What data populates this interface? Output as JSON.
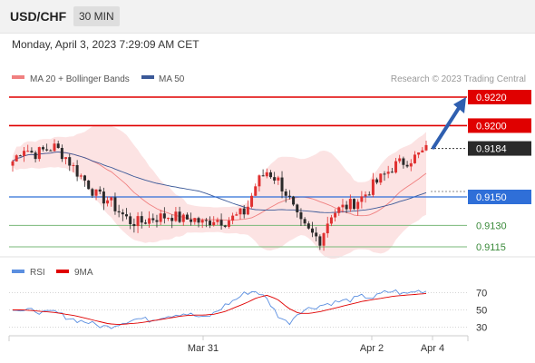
{
  "header": {
    "symbol": "USD/CHF",
    "timeframe": "30 MIN"
  },
  "datetime": "Monday, April 3, 2023 7:29:09 AM CET",
  "legend": {
    "ma20": "MA 20 + Bollinger Bands",
    "ma50": "MA 50",
    "watermark": "Research © 2023 Trading Central",
    "rsi": "RSI",
    "rsi_ma": "9MA"
  },
  "colors": {
    "resistance": "#e00000",
    "support": "#2f6fd8",
    "target_green": "#7ab87a",
    "candle_up": "#e03030",
    "candle_down": "#2a2a2a",
    "bollinger_fill": "#fbd9d9",
    "ma20": "#f08080",
    "ma50": "#3b5998",
    "rsi": "#5b8fe0",
    "rsi_ma": "#e00000",
    "arrow": "#2f5fb0",
    "price_box": "#2a2a2a"
  },
  "chart_data": [
    {
      "type": "candlestick",
      "y_scale": {
        "price_top": 0.922,
        "price_bottom": 0.9115
      },
      "levels": [
        {
          "label": "0.9220",
          "value": 0.922,
          "kind": "resistance"
        },
        {
          "label": "0.9200",
          "value": 0.92,
          "kind": "resistance"
        },
        {
          "label": "0.9184",
          "value": 0.9184,
          "kind": "price"
        },
        {
          "label": "0.9150",
          "value": 0.915,
          "kind": "support"
        },
        {
          "label": "0.9130",
          "value": 0.913,
          "kind": "target"
        },
        {
          "label": "0.9115",
          "value": 0.9115,
          "kind": "target"
        }
      ],
      "x_ticks": [
        "Mar 31",
        "Apr 2",
        "Apr 4"
      ],
      "close_path": [
        0.9175,
        0.9185,
        0.918,
        0.9183,
        0.9185,
        0.9178,
        0.9168,
        0.916,
        0.915,
        0.9148,
        0.914,
        0.9133,
        0.9132,
        0.9135,
        0.9136,
        0.9137,
        0.9134,
        0.9135,
        0.9131,
        0.9135,
        0.9133,
        0.9136,
        0.914,
        0.916,
        0.9168,
        0.9162,
        0.915,
        0.9132,
        0.9125,
        0.912,
        0.9138,
        0.9142,
        0.9145,
        0.915,
        0.9158,
        0.9165,
        0.9172,
        0.9175,
        0.9178,
        0.9183
      ]
    },
    {
      "type": "line",
      "name": "RSI",
      "y_ticks": [
        70,
        50,
        30
      ],
      "ylim": [
        20,
        80
      ],
      "rsi_path": [
        52,
        48,
        50,
        46,
        48,
        42,
        38,
        36,
        32,
        30,
        34,
        38,
        40,
        38,
        42,
        44,
        46,
        44,
        40,
        46,
        55,
        62,
        70,
        72,
        62,
        44,
        34,
        48,
        52,
        55,
        58,
        60,
        62,
        66,
        64,
        70,
        72,
        68,
        72,
        72
      ],
      "rsi_ma_path": [
        50,
        50,
        49,
        48,
        47,
        45,
        43,
        40,
        37,
        34,
        33,
        34,
        35,
        37,
        39,
        41,
        43,
        44,
        44,
        45,
        48,
        53,
        58,
        64,
        67,
        62,
        52,
        46,
        46,
        48,
        51,
        54,
        57,
        60,
        62,
        64,
        66,
        67,
        68,
        69
      ]
    }
  ]
}
